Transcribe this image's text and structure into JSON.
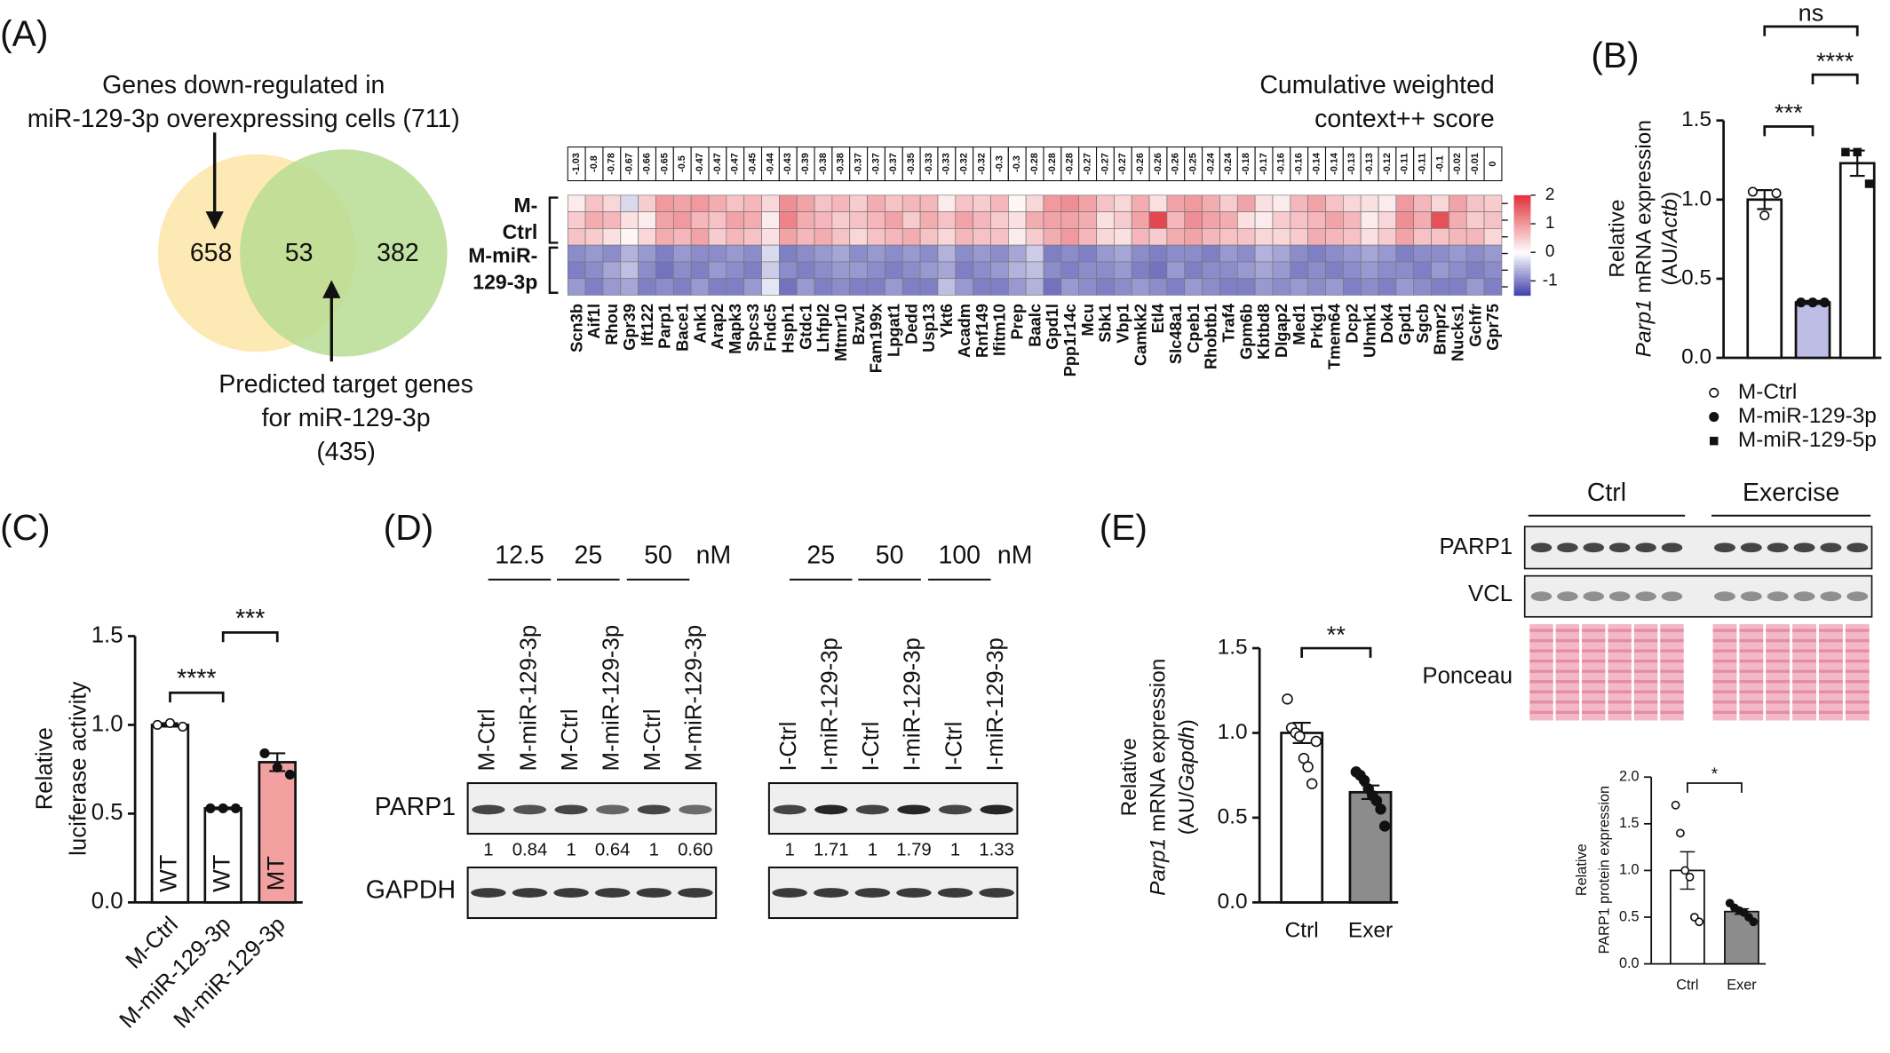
{
  "panel_labels": [
    "(A)",
    "(B)",
    "(C)",
    "(D)",
    "(E)"
  ],
  "venn": {
    "top_lines": [
      "Genes down-regulated in",
      "miR-129-3p overexpressing cells (711)"
    ],
    "counts": [
      "658",
      "53",
      "382"
    ],
    "bottom_lines": [
      "Predicted target genes",
      "for miR-129-3p",
      "(435)"
    ],
    "colors": [
      "#fde9b4",
      "#b5dc90"
    ]
  },
  "chart_data": [
    {
      "type": "bar",
      "categories": [
        "M-Ctrl",
        "M-miR-129-3p",
        "M-miR-129-5p"
      ],
      "values": [
        1.0,
        0.35,
        1.23
      ],
      "errors": [
        0.06,
        0.01,
        0.08
      ],
      "points": [
        [
          1.05,
          0.9,
          1.04
        ],
        [
          0.35,
          0.35,
          0.35
        ],
        [
          1.3,
          1.3,
          1.1
        ]
      ],
      "colors": [
        "#ffffff",
        "#bdbde6",
        "#ffffff"
      ],
      "markers": [
        "open-circle",
        "circle",
        "square"
      ],
      "ylim": [
        0,
        1.5
      ],
      "yticks": [
        {
          "value": 0,
          "label": "0.0"
        },
        0.5,
        {
          "value": 1,
          "label": "1.0"
        },
        1.5
      ],
      "ylabel": [
        [
          {
            "text": "Relative"
          }
        ],
        [
          {
            "text": "Parp1",
            "italic": true
          },
          {
            "text": " mRNA expression"
          }
        ],
        [
          {
            "text": "(AU/"
          },
          {
            "text": "Actb",
            "italic": true
          },
          {
            "text": ")"
          }
        ]
      ],
      "significance": [
        {
          "from": 0,
          "to": 1,
          "label": "***"
        },
        {
          "from": 1,
          "to": 2,
          "label": "****"
        },
        {
          "from": 0,
          "to": 2,
          "label": "ns"
        }
      ],
      "legend": true
    },
    {
      "type": "bar",
      "categories": [
        "M-Ctrl",
        "M-miR-129-3p",
        "M-miR-129-3p"
      ],
      "values": [
        1.0,
        0.53,
        0.79
      ],
      "errors": [
        0.01,
        0.005,
        0.05
      ],
      "points": [
        [
          1.0,
          1.01,
          0.99
        ],
        [
          0.53,
          0.53,
          0.53
        ],
        [
          0.84,
          0.76,
          0.72
        ]
      ],
      "colors": [
        "#ffffff",
        "#ffffff",
        "#f3a0a0"
      ],
      "markers": [
        "open-circle",
        "circle",
        "circle"
      ],
      "bar_labels": [
        "WT",
        "WT",
        "MT"
      ],
      "ylim": [
        0,
        1.5
      ],
      "yticks": [
        {
          "value": 0,
          "label": "0.0"
        },
        0.5,
        {
          "value": 1,
          "label": "1.0"
        },
        1.5
      ],
      "ylabel": [
        [
          {
            "text": "Relative"
          }
        ],
        [
          {
            "text": "luciferase activity"
          }
        ]
      ],
      "significance": [
        {
          "from": 0,
          "to": 1,
          "label": "****"
        },
        {
          "from": 1,
          "to": 2,
          "label": "***"
        }
      ],
      "legend": false
    },
    {
      "type": "bar",
      "categories": [
        "Ctrl",
        "Exer"
      ],
      "values": [
        1.0,
        0.65
      ],
      "errors": [
        0.06,
        0.04
      ],
      "points": [
        [
          1.2,
          1.03,
          1.0,
          0.98,
          0.85,
          0.8,
          0.7,
          0.95
        ],
        [
          0.77,
          0.75,
          0.72,
          0.67,
          0.63,
          0.6,
          0.55,
          0.45
        ]
      ],
      "colors": [
        "#ffffff",
        "#8c8c8c"
      ],
      "markers": [
        "open-circle",
        "circle"
      ],
      "ylim": [
        0,
        1.5
      ],
      "yticks": [
        {
          "value": 0,
          "label": "0.0"
        },
        0.5,
        {
          "value": 1,
          "label": "1.0"
        },
        1.5
      ],
      "ylabel": [
        [
          {
            "text": "Relative"
          }
        ],
        [
          {
            "text": "Parp1",
            "italic": true
          },
          {
            "text": " mRNA expression"
          }
        ],
        [
          {
            "text": "(AU/"
          },
          {
            "text": "Gapdh",
            "italic": true
          },
          {
            "text": ")"
          }
        ]
      ],
      "significance": [
        {
          "from": 0,
          "to": 1,
          "label": "**"
        }
      ],
      "legend": false
    },
    {
      "type": "bar",
      "categories": [
        "Ctrl",
        "Exer"
      ],
      "values": [
        1.0,
        0.56
      ],
      "errors": [
        0.2,
        0.03
      ],
      "points": [
        [
          1.7,
          1.4,
          1.0,
          0.93,
          0.5,
          0.45
        ],
        [
          0.65,
          0.6,
          0.57,
          0.55,
          0.5,
          0.45
        ]
      ],
      "colors": [
        "#ffffff",
        "#8c8c8c"
      ],
      "markers": [
        "open-circle",
        "circle"
      ],
      "ylim": [
        0,
        2
      ],
      "yticks": [
        {
          "value": 0,
          "label": "0.0"
        },
        0.5,
        {
          "value": 1,
          "label": "1.0"
        },
        1.5,
        {
          "value": 2,
          "label": "2.0"
        }
      ],
      "ylabel": [
        [
          {
            "text": "Relative"
          }
        ],
        [
          {
            "text": "PARP1 protein expression"
          }
        ]
      ],
      "significance": [
        {
          "from": 0,
          "to": 1,
          "label": "*"
        }
      ],
      "legend": false
    },
    {
      "type": "heatmap",
      "score_title": [
        "Cumulative weighted",
        "context++ score"
      ],
      "genes": [
        "Scn3b",
        "Aif1l",
        "Rhou",
        "Gpr39",
        "Ift122",
        "Parp1",
        "Bace1",
        "Ank1",
        "Arap2",
        "Mapk3",
        "Spcs3",
        "Fndc5",
        "Hsph1",
        "Gtdc1",
        "Lhfpl2",
        "Mtmr10",
        "Bzw1",
        "Fam199x",
        "Lpgat1",
        "Dedd",
        "Usp13",
        "Ykt6",
        "Acadm",
        "Rnf149",
        "Ifitm10",
        "Prep",
        "Baalc",
        "Gpd1l",
        "Ppp1r14c",
        "Mcu",
        "Sbk1",
        "Vbp1",
        "Camkk2",
        "Etl4",
        "Slc48a1",
        "Cpeb1",
        "Rhobtb1",
        "Traf4",
        "Gpm6b",
        "Kbtbd8",
        "Dlgap2",
        "Med1",
        "Prkg1",
        "Tmem64",
        "Dcp2",
        "Uhmk1",
        "Dok4",
        "Gpd1",
        "Sgcb",
        "Bmpr2",
        "Nucks1",
        "Gchfr",
        "Gpr75"
      ],
      "highlight": "Parp1",
      "highlight_color": "#e02020",
      "scores": [
        -1.03,
        -0.8,
        -0.78,
        -0.67,
        -0.66,
        -0.65,
        -0.5,
        -0.47,
        -0.47,
        -0.47,
        -0.45,
        -0.44,
        -0.43,
        -0.39,
        -0.38,
        -0.38,
        -0.37,
        -0.37,
        -0.37,
        -0.35,
        -0.33,
        -0.33,
        -0.32,
        -0.32,
        -0.3,
        -0.3,
        -0.28,
        -0.28,
        -0.28,
        -0.27,
        -0.27,
        -0.27,
        -0.26,
        -0.26,
        -0.26,
        -0.25,
        -0.24,
        -0.24,
        -0.18,
        -0.17,
        -0.16,
        -0.16,
        -0.14,
        -0.14,
        -0.13,
        -0.13,
        -0.12,
        -0.11,
        -0.11,
        -0.1,
        -0.02,
        -0.01,
        0
      ],
      "row_groups": [
        {
          "label": [
            "M-",
            "Ctrl"
          ],
          "rows": 3
        },
        {
          "label": [
            "M-miR-",
            "129-3p"
          ],
          "rows": 3
        }
      ],
      "values": [
        [
          0.2,
          0.6,
          0.4,
          -0.3,
          0.5,
          1.0,
          0.9,
          1.0,
          0.8,
          0.6,
          0.7,
          0.4,
          1.1,
          0.9,
          0.6,
          0.7,
          0.5,
          0.8,
          0.6,
          0.7,
          0.7,
          0.2,
          0.6,
          0.5,
          0.7,
          0.1,
          0.4,
          1.0,
          1.1,
          0.9,
          0.6,
          0.4,
          0.8,
          0.3,
          0.9,
          1.0,
          0.8,
          0.5,
          0.9,
          0.3,
          0.2,
          0.7,
          0.9,
          0.6,
          0.4,
          0.3,
          0.2,
          1.0,
          0.7,
          0.4,
          0.9,
          0.6,
          0.5
        ],
        [
          0.5,
          0.8,
          0.7,
          0.3,
          0.2,
          0.9,
          1.0,
          0.7,
          0.6,
          0.9,
          0.8,
          0.2,
          1.2,
          0.8,
          0.7,
          0.5,
          0.6,
          0.7,
          0.9,
          0.5,
          0.8,
          0.6,
          0.9,
          0.7,
          0.5,
          0.3,
          0.8,
          0.9,
          0.9,
          0.8,
          0.3,
          0.5,
          0.9,
          1.8,
          0.7,
          1.1,
          0.9,
          0.8,
          0.3,
          0.2,
          0.5,
          0.6,
          0.7,
          0.9,
          0.7,
          0.2,
          0.4,
          1.1,
          0.8,
          1.7,
          0.8,
          0.5,
          0.6
        ],
        [
          0.6,
          0.5,
          0.3,
          0.1,
          0.4,
          0.8,
          0.7,
          0.9,
          0.5,
          0.7,
          0.6,
          0.3,
          0.9,
          0.7,
          0.8,
          0.6,
          0.4,
          0.6,
          0.7,
          0.8,
          0.6,
          0.4,
          0.7,
          0.6,
          0.6,
          0.2,
          0.5,
          0.8,
          1.0,
          0.7,
          0.4,
          0.3,
          0.7,
          0.5,
          0.8,
          0.9,
          0.7,
          0.6,
          0.6,
          0.4,
          0.4,
          0.5,
          0.8,
          0.7,
          0.6,
          0.3,
          0.5,
          0.9,
          0.6,
          0.6,
          0.7,
          0.7,
          0.4
        ],
        [
          -0.9,
          -0.8,
          -0.9,
          -0.6,
          -0.8,
          -1.0,
          -0.8,
          -0.9,
          -0.9,
          -0.8,
          -0.9,
          -0.3,
          -1.0,
          -0.9,
          -0.8,
          -0.7,
          -0.9,
          -0.8,
          -0.9,
          -0.8,
          -0.9,
          -0.6,
          -0.9,
          -0.8,
          -0.9,
          -0.7,
          -0.4,
          -1.0,
          -0.9,
          -1.0,
          -0.8,
          -0.7,
          -0.9,
          -1.0,
          -0.9,
          -0.9,
          -1.0,
          -0.8,
          -0.9,
          -0.6,
          -0.7,
          -0.9,
          -1.0,
          -0.9,
          -0.8,
          -0.7,
          -0.8,
          -1.0,
          -0.9,
          -0.9,
          -0.8,
          -0.9,
          -0.8
        ],
        [
          -1.0,
          -0.9,
          -0.7,
          -0.5,
          -0.9,
          -1.1,
          -0.9,
          -1.0,
          -0.8,
          -0.9,
          -1.0,
          -0.4,
          -0.9,
          -1.0,
          -0.9,
          -0.8,
          -0.8,
          -0.9,
          -1.0,
          -0.9,
          -0.8,
          -0.7,
          -1.0,
          -0.9,
          -0.8,
          -0.6,
          -0.5,
          -0.9,
          -1.0,
          -0.9,
          -0.9,
          -0.8,
          -1.0,
          -1.1,
          -0.8,
          -1.0,
          -0.9,
          -0.9,
          -0.8,
          -0.7,
          -0.8,
          -1.0,
          -0.9,
          -1.0,
          -0.9,
          -0.8,
          -0.9,
          -0.9,
          -1.0,
          -0.8,
          -0.9,
          -1.0,
          -0.9
        ],
        [
          -0.8,
          -1.0,
          -0.8,
          -0.7,
          -1.0,
          -0.9,
          -1.0,
          -0.8,
          -1.0,
          -1.0,
          -0.8,
          -0.2,
          -1.1,
          -0.8,
          -1.0,
          -0.9,
          -1.0,
          -1.0,
          -0.8,
          -1.0,
          -1.0,
          -0.5,
          -0.8,
          -1.0,
          -1.0,
          -0.8,
          -0.6,
          -1.1,
          -0.8,
          -0.9,
          -1.0,
          -0.9,
          -0.8,
          -0.9,
          -1.0,
          -0.8,
          -0.9,
          -1.0,
          -1.0,
          -0.8,
          -0.9,
          -0.8,
          -0.9,
          -0.8,
          -1.0,
          -0.9,
          -1.0,
          -0.8,
          -0.9,
          -1.0,
          -1.0,
          -0.8,
          -1.0
        ]
      ],
      "clim": [
        -1.5,
        2
      ],
      "cticks": [
        2,
        1,
        0,
        -1
      ],
      "colors": {
        "low": "#3f3fa8",
        "mid": "#ffffff",
        "high": "#e2323c"
      }
    }
  ],
  "blot_D": {
    "rows": [
      "PARP1",
      "GAPDH"
    ],
    "left": {
      "concentrations": [
        "12.5",
        "25",
        "50"
      ],
      "unit": "nM",
      "lanes": [
        "M-Ctrl",
        "M-miR-129-3p",
        "M-Ctrl",
        "M-miR-129-3p",
        "M-Ctrl",
        "M-miR-129-3p"
      ],
      "quant": [
        1,
        0.84,
        1,
        0.64,
        1,
        {
          "value": 0.6,
          "label": "0.60"
        }
      ]
    },
    "right": {
      "concentrations": [
        "25",
        "50",
        "100"
      ],
      "unit": "nM",
      "lanes": [
        "I-Ctrl",
        "I-miR-129-3p",
        "I-Ctrl",
        "I-miR-129-3p",
        "I-Ctrl",
        "I-miR-129-3p"
      ],
      "quant": [
        1,
        1.71,
        1,
        1.79,
        1,
        1.33
      ]
    }
  },
  "blot_E": {
    "groups": [
      "Ctrl",
      "Exercise"
    ],
    "rows": [
      "PARP1",
      "VCL",
      "Ponceau"
    ]
  }
}
